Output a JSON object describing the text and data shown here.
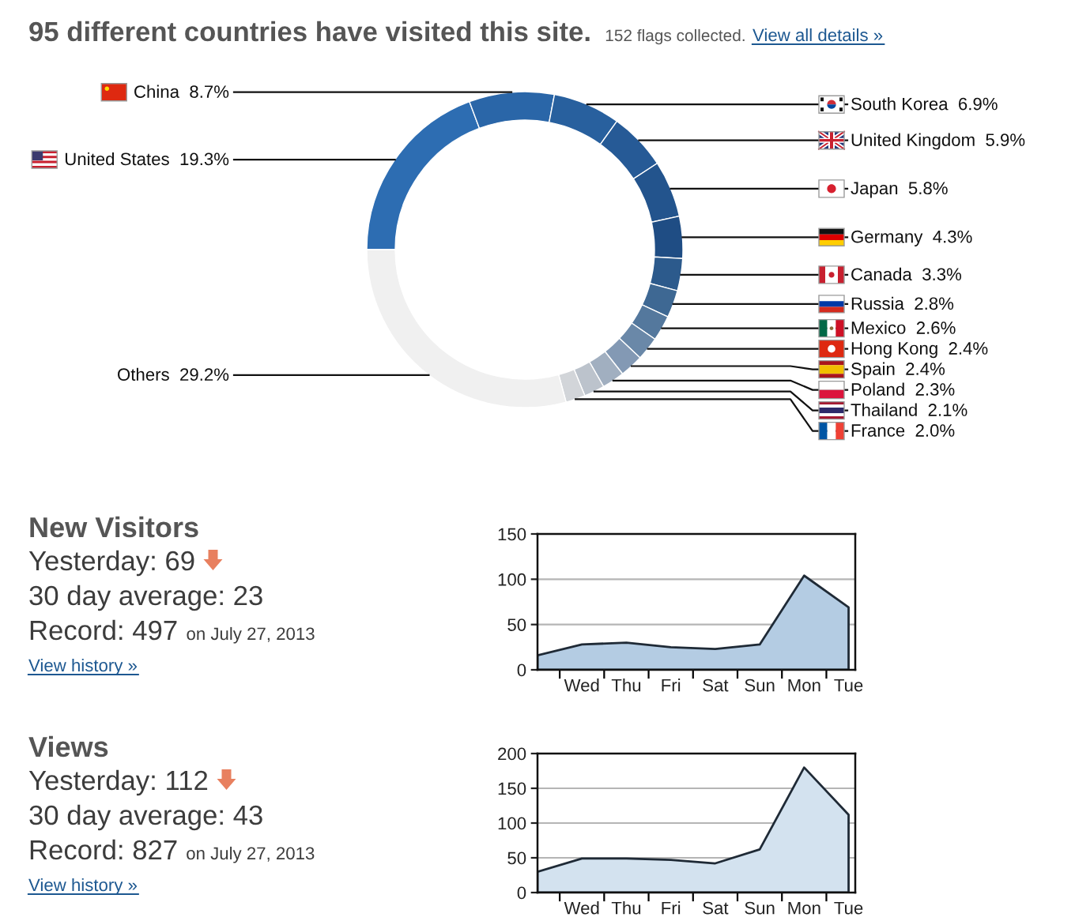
{
  "chart_data": [
    {
      "type": "donut",
      "title": "95 different countries have visited this site.",
      "subtitle": "152 flags collected.",
      "annotations": [
        "View all details »"
      ],
      "categories": [
        "United States",
        "China",
        "South Korea",
        "United Kingdom",
        "Japan",
        "Germany",
        "Canada",
        "Russia",
        "Mexico",
        "Hong Kong",
        "Spain",
        "Poland",
        "Thailand",
        "France",
        "Others"
      ],
      "values": [
        19.3,
        8.7,
        6.9,
        5.9,
        5.8,
        4.3,
        3.3,
        2.8,
        2.6,
        2.4,
        2.4,
        2.3,
        2.1,
        2.0,
        29.2
      ],
      "value_labels": [
        "19.3%",
        "8.7%",
        "6.9%",
        "5.9%",
        "5.8%",
        "4.3%",
        "3.3%",
        "2.8%",
        "2.6%",
        "2.4%",
        "2.4%",
        "2.3%",
        "2.1%",
        "2.0%",
        "29.2%"
      ],
      "colors": [
        "#2d6db2",
        "#2a66a8",
        "#28609e",
        "#265a96",
        "#23548d",
        "#1f4d84",
        "#2c5a8c",
        "#3e6893",
        "#54789d",
        "#6a88a8",
        "#8399b4",
        "#a1afc0",
        "#bcc3cc",
        "#d2d5d9",
        "#f0f0f0"
      ]
    },
    {
      "type": "other",
      "title": "New Visitors",
      "annotations": [
        "Yesterday: 69",
        "30 day average: 23",
        "Record: 497",
        "on July 27, 2013",
        "View history »"
      ]
    },
    {
      "type": "area",
      "categories": [
        null,
        "Wed",
        "Thu",
        "Fri",
        "Sat",
        "Sun",
        "Mon",
        "Tue"
      ],
      "series": [
        {
          "color": "#b4cce3",
          "values": [
            16,
            28,
            30,
            25,
            23,
            28,
            104,
            69
          ]
        }
      ],
      "ylim": [
        0,
        150
      ],
      "yticks": [
        0,
        50,
        100,
        150
      ],
      "grid": "y"
    },
    {
      "type": "other",
      "title": "Views",
      "annotations": [
        "Yesterday: 112",
        "30 day average: 43",
        "Record: 827",
        "on July 27, 2013",
        "View history »"
      ]
    },
    {
      "type": "area",
      "categories": [
        null,
        "Wed",
        "Thu",
        "Fri",
        "Sat",
        "Sun",
        "Mon",
        "Tue"
      ],
      "series": [
        {
          "color": "#d3e2ef",
          "values": [
            30,
            49,
            49,
            47,
            42,
            62,
            180,
            112
          ]
        }
      ],
      "ylim": [
        0,
        200
      ],
      "yticks": [
        0,
        50,
        100,
        150,
        200
      ],
      "grid": "y"
    }
  ]
}
